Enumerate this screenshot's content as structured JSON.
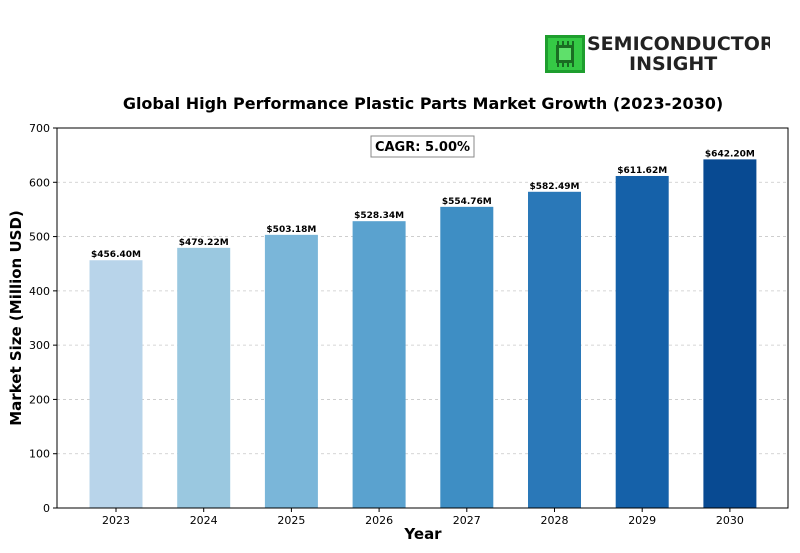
{
  "logo": {
    "line1": "SEMICONDUCTOR",
    "line2": "INSIGHT",
    "icon": "chip-icon",
    "icon_color": "#2fbf3c"
  },
  "chart_data": {
    "type": "bar",
    "title": "Global High Performance Plastic Parts Market Growth (2023-2030)",
    "xlabel": "Year",
    "ylabel": "Market Size (Million USD)",
    "categories": [
      "2023",
      "2024",
      "2025",
      "2026",
      "2027",
      "2028",
      "2029",
      "2030"
    ],
    "values": [
      456.4,
      479.22,
      503.18,
      528.34,
      554.76,
      582.49,
      611.62,
      642.2
    ],
    "value_labels": [
      "$456.40M",
      "$479.22M",
      "$503.18M",
      "$528.34M",
      "$554.76M",
      "$582.49M",
      "$611.62M",
      "$642.20M"
    ],
    "colors": [
      "#b8d4ea",
      "#9ac8e0",
      "#7ab6d9",
      "#5aa2cf",
      "#3e8ec4",
      "#2a78b8",
      "#1561a9",
      "#084a92"
    ],
    "ylim": [
      0,
      700
    ],
    "yticks": [
      0,
      100,
      200,
      300,
      400,
      500,
      600,
      700
    ],
    "grid": true,
    "annotation": "CAGR: 5.00%"
  }
}
